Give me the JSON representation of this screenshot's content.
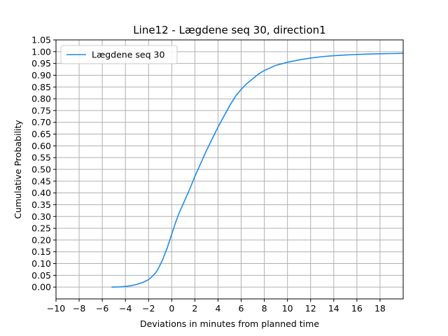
{
  "chart_data": {
    "type": "line",
    "title": "Line12 - Lægdene seq 30, direction1",
    "xlabel": "Deviations in minutes from planned time",
    "ylabel": "Cumulative Probability",
    "xlim": [
      -10,
      20
    ],
    "ylim": [
      -0.05,
      1.05
    ],
    "x_ticks": [
      -10,
      -8,
      -6,
      -4,
      -2,
      0,
      2,
      4,
      6,
      8,
      10,
      12,
      14,
      16,
      18
    ],
    "x_tick_labels": [
      "−10",
      "−8",
      "−6",
      "−4",
      "−2",
      "0",
      "2",
      "4",
      "6",
      "8",
      "10",
      "12",
      "14",
      "16",
      "18"
    ],
    "y_ticks": [
      0.0,
      0.05,
      0.1,
      0.15,
      0.2,
      0.25,
      0.3,
      0.35,
      0.4,
      0.45,
      0.5,
      0.55,
      0.6,
      0.65,
      0.7,
      0.75,
      0.8,
      0.85,
      0.9,
      0.95,
      1.0,
      1.05
    ],
    "y_tick_labels": [
      "0.00",
      "0.05",
      "0.10",
      "0.15",
      "0.20",
      "0.25",
      "0.30",
      "0.35",
      "0.40",
      "0.45",
      "0.50",
      "0.55",
      "0.60",
      "0.65",
      "0.70",
      "0.75",
      "0.80",
      "0.85",
      "0.90",
      "0.95",
      "1.00",
      "1.05"
    ],
    "grid": true,
    "legend_position": "top-left",
    "series": [
      {
        "name": "Lægdene seq 30",
        "color": "#1f8ceb",
        "x": [
          -5.2,
          -4.5,
          -4.0,
          -3.5,
          -3.0,
          -2.5,
          -2.0,
          -1.7,
          -1.4,
          -1.2,
          -1.0,
          -0.8,
          -0.6,
          -0.4,
          -0.2,
          0.0,
          0.3,
          0.6,
          1.0,
          1.5,
          2.0,
          2.5,
          3.0,
          3.5,
          4.0,
          4.5,
          5.0,
          5.5,
          6.0,
          6.5,
          7.0,
          7.5,
          8.0,
          9.0,
          10.0,
          11.0,
          12.0,
          13.0,
          14.0,
          15.0,
          16.0,
          17.0,
          18.0,
          19.0,
          20.0
        ],
        "y": [
          0.0,
          0.001,
          0.003,
          0.006,
          0.012,
          0.02,
          0.032,
          0.045,
          0.06,
          0.075,
          0.095,
          0.115,
          0.14,
          0.165,
          0.195,
          0.225,
          0.27,
          0.31,
          0.355,
          0.41,
          0.47,
          0.525,
          0.58,
          0.63,
          0.68,
          0.725,
          0.77,
          0.81,
          0.84,
          0.865,
          0.885,
          0.905,
          0.92,
          0.942,
          0.955,
          0.965,
          0.973,
          0.979,
          0.983,
          0.986,
          0.988,
          0.99,
          0.991,
          0.992,
          0.993
        ]
      }
    ]
  }
}
